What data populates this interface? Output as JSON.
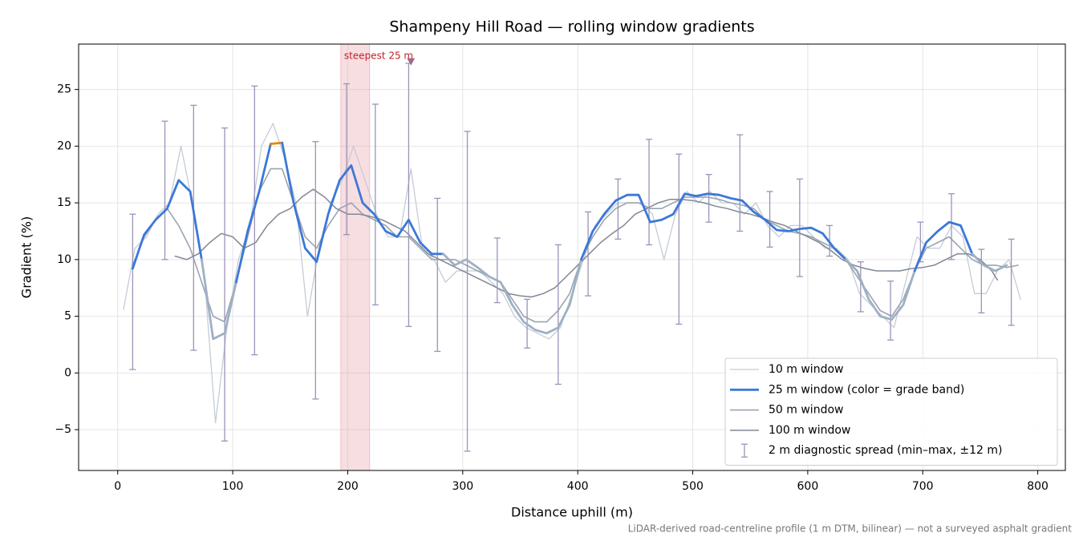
{
  "chart_data": {
    "type": "line",
    "title": "Shampeny Hill Road — rolling window gradients",
    "x_label": "Distance uphill (m)",
    "y_label": "Gradient (%)",
    "footnote": "LiDAR-derived road-centreline profile (1 m DTM, bilinear) — not a surveyed asphalt gradient",
    "xlim": [
      -34,
      824
    ],
    "ylim": [
      -8.6,
      29.0
    ],
    "xticks": [
      0,
      100,
      200,
      300,
      400,
      500,
      600,
      700,
      800
    ],
    "yticks": [
      {
        "value": -5,
        "label": "−5"
      },
      0,
      5,
      10,
      15,
      20,
      25
    ],
    "grid": true,
    "legend": "lower right",
    "series": [
      {
        "name": "10 m window",
        "color": "#c4ccd6",
        "x": [
          5,
          15,
          25,
          35,
          45,
          55,
          65,
          75,
          85,
          95,
          105,
          115,
          125,
          135,
          145,
          155,
          165,
          175,
          185,
          195,
          205,
          215,
          225,
          235,
          245,
          255,
          265,
          275,
          285,
          295,
          305,
          315,
          325,
          335,
          345,
          355,
          365,
          375,
          385,
          395,
          405,
          415,
          425,
          435,
          445,
          455,
          465,
          475,
          485,
          495,
          505,
          515,
          525,
          535,
          545,
          555,
          565,
          575,
          585,
          595,
          605,
          615,
          625,
          635,
          645,
          655,
          665,
          675,
          685,
          695,
          705,
          715,
          725,
          735,
          745,
          755,
          765,
          775,
          785
        ],
        "values": [
          5.6,
          11,
          12,
          14,
          15,
          20,
          15,
          9,
          -4.4,
          4,
          10,
          13,
          20,
          22,
          19,
          15,
          5,
          11,
          15,
          17,
          20,
          17,
          14,
          12,
          12,
          18,
          11,
          10,
          8,
          9,
          9,
          9,
          8,
          7,
          5,
          4,
          3.5,
          3,
          4,
          7,
          10,
          13,
          14,
          15,
          15,
          15,
          14,
          10,
          14,
          16,
          15,
          16,
          15,
          15,
          14,
          15,
          13,
          12,
          13,
          13,
          12,
          11,
          11,
          10,
          7,
          6,
          5,
          4,
          8,
          12,
          11,
          11,
          13,
          12,
          7,
          7,
          9,
          10,
          6.5
        ]
      },
      {
        "name": "25 m window (color = grade band)",
        "color": "#3b78d8",
        "grade_bands": {
          "thresholds": [
            10,
            20
          ],
          "colors": [
            "#9fb0c4",
            "#3b78d8",
            "#e08a00"
          ]
        },
        "x": [
          13,
          23,
          33,
          43,
          53,
          63,
          73,
          83,
          93,
          103,
          113,
          123,
          133,
          143,
          153,
          163,
          173,
          183,
          193,
          203,
          213,
          223,
          233,
          243,
          253,
          263,
          273,
          283,
          293,
          303,
          313,
          323,
          333,
          343,
          353,
          363,
          373,
          383,
          393,
          403,
          413,
          423,
          433,
          443,
          453,
          463,
          473,
          483,
          493,
          503,
          513,
          523,
          533,
          543,
          553,
          563,
          573,
          583,
          593,
          603,
          613,
          623,
          633,
          643,
          653,
          663,
          673,
          683,
          693,
          703,
          713,
          723,
          733,
          743,
          753,
          763,
          773
        ],
        "values": [
          9.2,
          12.2,
          13.5,
          14.5,
          17,
          16,
          10,
          3,
          3.5,
          8,
          12.5,
          16,
          20.2,
          20.3,
          15,
          11,
          9.8,
          14,
          17,
          18.3,
          15,
          14,
          12.5,
          12,
          13.5,
          11.5,
          10.5,
          10.5,
          9.5,
          10,
          9.3,
          8.5,
          8,
          6,
          4.5,
          3.8,
          3.5,
          4,
          6,
          10,
          12.5,
          14,
          15.2,
          15.7,
          15.7,
          13.3,
          13.5,
          14,
          15.8,
          15.6,
          15.8,
          15.7,
          15.4,
          15.2,
          14.2,
          13.5,
          12.6,
          12.5,
          12.7,
          12.8,
          12.3,
          11,
          10,
          9,
          6.5,
          5,
          4.7,
          6,
          9,
          11.5,
          12.5,
          13.3,
          13,
          10.5,
          9.5,
          9,
          9.5
        ]
      },
      {
        "name": "50 m window",
        "color": "#9aa4b2",
        "x": [
          13,
          23,
          33,
          43,
          53,
          63,
          73,
          83,
          93,
          103,
          113,
          123,
          133,
          143,
          153,
          163,
          173,
          183,
          193,
          203,
          213,
          223,
          233,
          243,
          253,
          263,
          273,
          283,
          293,
          303,
          313,
          323,
          333,
          343,
          353,
          363,
          373,
          383,
          393,
          403,
          413,
          423,
          433,
          443,
          453,
          463,
          473,
          483,
          493,
          503,
          513,
          523,
          533,
          543,
          553,
          563,
          573,
          583,
          593,
          603,
          613,
          623,
          633,
          643,
          653,
          663,
          673,
          683,
          693,
          703,
          713,
          723,
          733,
          743,
          753,
          763,
          773,
          783
        ],
        "values": [
          9.5,
          12,
          13.5,
          14.5,
          13,
          11,
          8,
          5,
          4.5,
          8,
          12,
          16,
          18,
          18,
          15,
          12,
          11,
          13,
          14.5,
          15,
          14,
          13.5,
          13,
          12,
          12,
          11,
          10,
          10,
          10,
          9.5,
          9,
          8.5,
          8,
          6.5,
          5,
          4.5,
          4.5,
          5.5,
          7,
          10,
          12,
          13.5,
          14.5,
          15,
          15,
          14.5,
          14.5,
          15,
          15.5,
          15.5,
          15.5,
          15.3,
          15,
          14.8,
          14.5,
          13.5,
          13,
          12.5,
          12.3,
          12,
          11.5,
          11,
          10,
          8.5,
          7,
          5.5,
          5,
          6.5,
          9,
          11,
          11.5,
          12,
          11,
          10,
          9.5,
          9.5,
          9.3,
          9.5
        ]
      },
      {
        "name": "100 m window",
        "color": "#808894",
        "x": [
          50,
          60,
          70,
          80,
          90,
          100,
          110,
          120,
          130,
          140,
          150,
          160,
          170,
          180,
          190,
          200,
          210,
          220,
          230,
          240,
          250,
          260,
          270,
          280,
          290,
          300,
          310,
          320,
          330,
          340,
          350,
          360,
          370,
          380,
          390,
          400,
          410,
          420,
          430,
          440,
          450,
          460,
          470,
          480,
          490,
          500,
          510,
          520,
          530,
          540,
          550,
          560,
          570,
          580,
          590,
          600,
          610,
          620,
          630,
          640,
          650,
          660,
          670,
          680,
          690,
          700,
          710,
          720,
          730,
          740,
          750,
          760,
          765
        ],
        "values": [
          10.3,
          10,
          10.5,
          11.5,
          12.3,
          12,
          11,
          11.5,
          13,
          14,
          14.5,
          15.5,
          16.2,
          15.5,
          14.5,
          14,
          14,
          13.8,
          13.5,
          13,
          12.5,
          11.5,
          10.5,
          10,
          9.5,
          9,
          8.5,
          8,
          7.5,
          7,
          6.8,
          6.7,
          7,
          7.5,
          8.5,
          9.5,
          10.5,
          11.5,
          12.3,
          13,
          14,
          14.5,
          15,
          15.3,
          15.3,
          15.2,
          15,
          14.7,
          14.5,
          14.2,
          14,
          13.7,
          13.3,
          13,
          12.5,
          12,
          11.5,
          10.8,
          10,
          9.5,
          9.2,
          9,
          9,
          9,
          9.2,
          9.3,
          9.5,
          10,
          10.5,
          10.5,
          10,
          9,
          8.2
        ]
      }
    ],
    "error_bars": {
      "name": "2 m diagnostic spread (min–max, ±12 m)",
      "color": "#9a94b8",
      "x": [
        13,
        41,
        66,
        93,
        119,
        172,
        199,
        224,
        253,
        278,
        304,
        330,
        356,
        383,
        409,
        435,
        462,
        488,
        514,
        541,
        567,
        593,
        619,
        646,
        672,
        698,
        725,
        751,
        777
      ],
      "low": [
        0.3,
        10,
        2,
        -6,
        1.6,
        -2.3,
        12.2,
        6,
        4.1,
        1.9,
        -6.9,
        6.2,
        2.2,
        -1,
        6.8,
        11.8,
        11.3,
        4.3,
        13.3,
        12.5,
        11.1,
        8.5,
        10.3,
        5.4,
        2.9,
        9.8,
        10,
        5.3,
        4.2
      ],
      "high": [
        14,
        22.2,
        23.6,
        21.6,
        25.3,
        20.4,
        25.5,
        23.7,
        27.3,
        15.4,
        21.3,
        11.9,
        6.5,
        11.3,
        14.2,
        17.1,
        20.6,
        19.3,
        17.5,
        21,
        16,
        17.1,
        13,
        9.8,
        8.1,
        13.3,
        15.8,
        10.9,
        11.8
      ]
    },
    "highlight": {
      "label": "steepest 25 m",
      "start": 194,
      "end": 219,
      "color": "#e8a0a8"
    },
    "marker": {
      "x": 255,
      "y": 27.4,
      "color": "#a06a8a"
    }
  }
}
